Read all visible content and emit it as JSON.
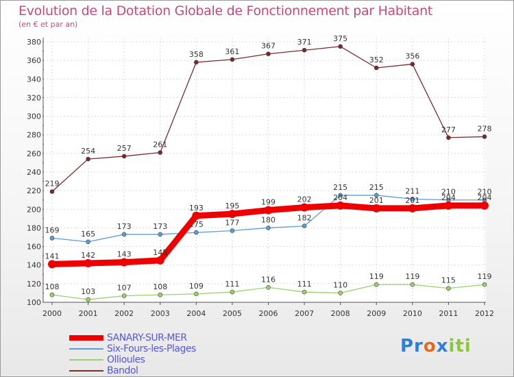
{
  "header": {
    "title": "Evolution de la Dotation Globale de Fonctionnement par Habitant",
    "subtitle": "(en € et par an)"
  },
  "brand": {
    "parts": [
      "Pr",
      "o",
      "x",
      "iti"
    ],
    "colors": [
      "#2f7fd6",
      "#e46a1c",
      "#2f7fd6",
      "#8cc63f"
    ]
  },
  "chart_data": {
    "type": "line",
    "x": [
      2000,
      2001,
      2002,
      2003,
      2004,
      2005,
      2006,
      2007,
      2008,
      2009,
      2010,
      2011,
      2012
    ],
    "ylim": [
      100,
      380
    ],
    "yticks": [
      100,
      120,
      140,
      160,
      180,
      200,
      220,
      240,
      260,
      280,
      300,
      320,
      340,
      360,
      380
    ],
    "grid": true,
    "legend_position": "bottom-left",
    "series": [
      {
        "name": "SANARY-SUR-MER",
        "color": "#ee0000",
        "values": [
          141,
          142,
          143,
          145,
          193,
          195,
          199,
          202,
          204,
          201,
          201,
          204,
          204
        ]
      },
      {
        "name": "Six-Fours-les-Plages",
        "color": "#5c9bd6",
        "values": [
          169,
          165,
          173,
          173,
          175,
          177,
          180,
          182,
          215,
          215,
          211,
          210,
          210
        ]
      },
      {
        "name": "Ollioules",
        "color": "#9ad16a",
        "values": [
          108,
          103,
          107,
          108,
          109,
          111,
          116,
          111,
          110,
          119,
          119,
          115,
          119
        ]
      },
      {
        "name": "Bandol",
        "color": "#7a2a2a",
        "values": [
          219,
          254,
          257,
          261,
          358,
          361,
          367,
          371,
          375,
          352,
          356,
          277,
          278
        ]
      }
    ]
  }
}
